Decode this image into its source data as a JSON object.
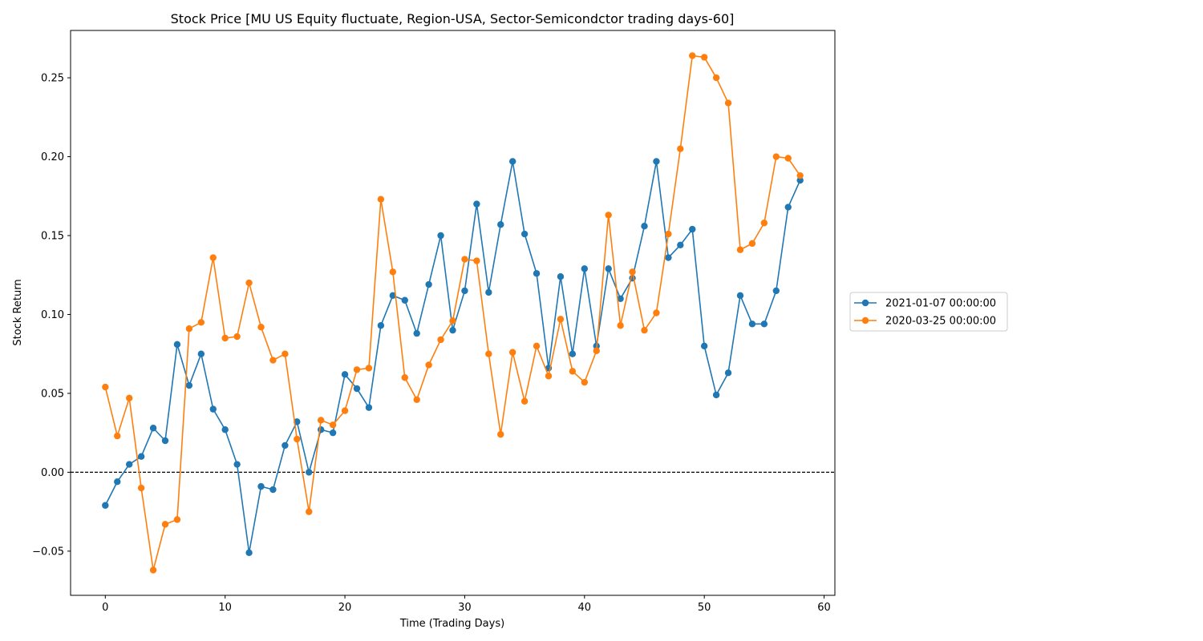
{
  "chart_data": {
    "type": "line",
    "title": "Stock Price [MU US Equity fluctuate, Region-USA, Sector-Semicondctor trading days-60]",
    "xlabel": "Time (Trading Days)",
    "ylabel": "Stock Return",
    "xlim": [
      -2.9,
      60.9
    ],
    "ylim": [
      -0.078,
      0.28
    ],
    "x_ticks": [
      0,
      10,
      20,
      30,
      40,
      50,
      60
    ],
    "x_tick_labels": [
      "0",
      "10",
      "20",
      "30",
      "40",
      "50",
      "60"
    ],
    "y_ticks": [
      -0.05,
      0.0,
      0.05,
      0.1,
      0.15,
      0.2,
      0.25
    ],
    "y_tick_labels": [
      "−0.05",
      "0.00",
      "0.05",
      "0.10",
      "0.15",
      "0.20",
      "0.25"
    ],
    "reference_line": {
      "y": 0.0,
      "style": "dashed",
      "color": "#000000"
    },
    "grid": false,
    "legend_position": "right, outside plot area",
    "x": [
      0,
      1,
      2,
      3,
      4,
      5,
      6,
      7,
      8,
      9,
      10,
      11,
      12,
      13,
      14,
      15,
      16,
      17,
      18,
      19,
      20,
      21,
      22,
      23,
      24,
      25,
      26,
      27,
      28,
      29,
      30,
      31,
      32,
      33,
      34,
      35,
      36,
      37,
      38,
      39,
      40,
      41,
      42,
      43,
      44,
      45,
      46,
      47,
      48,
      49,
      50,
      51,
      52,
      53,
      54,
      55,
      56,
      57,
      58
    ],
    "series": [
      {
        "name": "2021-01-07 00:00:00",
        "color": "#1f77b4",
        "values": [
          -0.021,
          -0.006,
          0.005,
          0.01,
          0.028,
          0.02,
          0.081,
          0.055,
          0.075,
          0.04,
          0.027,
          0.005,
          -0.051,
          -0.009,
          -0.011,
          0.017,
          0.032,
          0.0,
          0.027,
          0.025,
          0.062,
          0.053,
          0.041,
          0.093,
          0.112,
          0.109,
          0.088,
          0.119,
          0.15,
          0.09,
          0.115,
          0.17,
          0.114,
          0.157,
          0.197,
          0.151,
          0.126,
          0.066,
          0.124,
          0.075,
          0.129,
          0.08,
          0.129,
          0.11,
          0.123,
          0.156,
          0.197,
          0.136,
          0.144,
          0.154,
          0.08,
          0.049,
          0.063,
          0.112,
          0.094,
          0.094,
          0.115,
          0.168,
          0.185
        ]
      },
      {
        "name": "2020-03-25 00:00:00",
        "color": "#ff7f0e",
        "values": [
          0.054,
          0.023,
          0.047,
          -0.01,
          -0.062,
          -0.033,
          -0.03,
          0.091,
          0.095,
          0.136,
          0.085,
          0.086,
          0.12,
          0.092,
          0.071,
          0.075,
          0.021,
          -0.025,
          0.033,
          0.03,
          0.039,
          0.065,
          0.066,
          0.173,
          0.127,
          0.06,
          0.046,
          0.068,
          0.084,
          0.096,
          0.135,
          0.134,
          0.075,
          0.024,
          0.076,
          0.045,
          0.08,
          0.061,
          0.097,
          0.064,
          0.057,
          0.077,
          0.163,
          0.093,
          0.127,
          0.09,
          0.101,
          0.151,
          0.205,
          0.264,
          0.263,
          0.25,
          0.234,
          0.141,
          0.145,
          0.158,
          0.2,
          0.199,
          0.188
        ]
      }
    ]
  }
}
